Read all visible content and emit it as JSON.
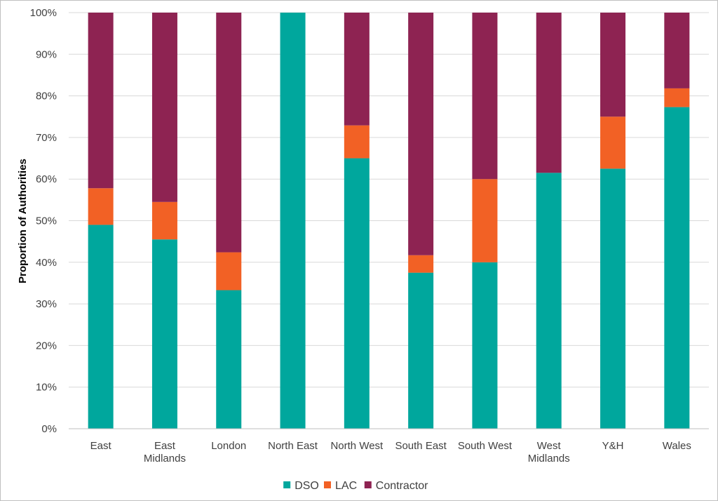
{
  "chart_data": {
    "type": "bar",
    "stacked": true,
    "categories": [
      [
        "East"
      ],
      [
        "East",
        "Midlands"
      ],
      [
        "London"
      ],
      [
        "North East"
      ],
      [
        "North West"
      ],
      [
        "South East"
      ],
      [
        "South West"
      ],
      [
        "West",
        "Midlands"
      ],
      [
        "Y&H"
      ],
      [
        "Wales"
      ]
    ],
    "series": [
      {
        "name": "DSO",
        "color": "#00A79D",
        "values": [
          49.0,
          45.5,
          33.3,
          100.0,
          65.0,
          37.5,
          40.0,
          61.5,
          62.5,
          77.3
        ]
      },
      {
        "name": "LAC",
        "color": "#F26125",
        "values": [
          8.8,
          9.0,
          9.1,
          0.0,
          7.9,
          4.2,
          20.0,
          0.0,
          12.5,
          4.5
        ]
      },
      {
        "name": "Contractor",
        "color": "#8E2352",
        "values": [
          42.2,
          45.5,
          57.6,
          0.0,
          27.1,
          58.3,
          40.0,
          38.5,
          25.0,
          18.2
        ]
      }
    ],
    "title": "",
    "xlabel": "",
    "ylabel": "Proportion of Authorities",
    "ylim": [
      0,
      100
    ],
    "yticks": [
      "0%",
      "10%",
      "20%",
      "30%",
      "40%",
      "50%",
      "60%",
      "70%",
      "80%",
      "90%",
      "100%"
    ],
    "grid": true,
    "legend_position": "bottom"
  }
}
